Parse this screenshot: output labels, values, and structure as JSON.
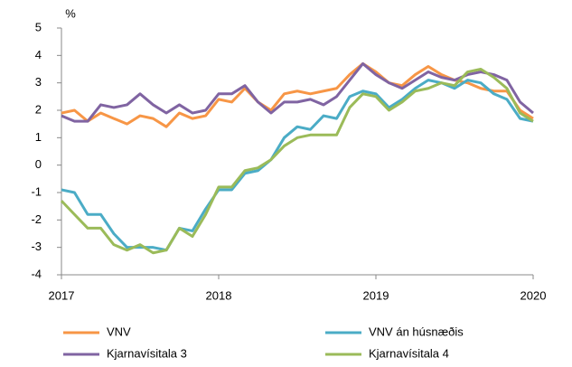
{
  "chart_data": {
    "type": "line",
    "y_label": "%",
    "x": [
      2017,
      2017.083,
      2017.167,
      2017.25,
      2017.333,
      2017.417,
      2017.5,
      2017.583,
      2017.667,
      2017.75,
      2017.833,
      2017.917,
      2018,
      2018.083,
      2018.167,
      2018.25,
      2018.333,
      2018.417,
      2018.5,
      2018.583,
      2018.667,
      2018.75,
      2018.833,
      2018.917,
      2019,
      2019.083,
      2019.167,
      2019.25,
      2019.333,
      2019.417,
      2019.5,
      2019.583,
      2019.667,
      2019.75,
      2019.833,
      2019.917,
      2020
    ],
    "series": [
      {
        "name": "VNV",
        "color": "#f79646",
        "values": [
          1.9,
          2.0,
          1.6,
          1.9,
          1.7,
          1.5,
          1.8,
          1.7,
          1.4,
          1.9,
          1.7,
          1.8,
          2.4,
          2.3,
          2.8,
          2.3,
          2.0,
          2.6,
          2.7,
          2.6,
          2.7,
          2.8,
          3.3,
          3.7,
          3.4,
          3.0,
          2.9,
          3.3,
          3.6,
          3.3,
          3.1,
          3.0,
          2.8,
          2.7,
          2.7,
          2.0,
          1.7
        ]
      },
      {
        "name": "VNV án húsnæðis",
        "color": "#4bacc6",
        "values": [
          -0.9,
          -1.0,
          -1.8,
          -1.8,
          -2.5,
          -3.0,
          -3.0,
          -3.0,
          -3.1,
          -2.3,
          -2.4,
          -1.6,
          -0.9,
          -0.9,
          -0.3,
          -0.2,
          0.2,
          1.0,
          1.4,
          1.3,
          1.8,
          1.7,
          2.5,
          2.7,
          2.6,
          2.1,
          2.4,
          2.8,
          3.1,
          3.0,
          2.8,
          3.1,
          3.0,
          2.6,
          2.4,
          1.7,
          1.6
        ]
      },
      {
        "name": "Kjarnavísitala 3",
        "color": "#8064a2",
        "values": [
          1.8,
          1.6,
          1.6,
          2.2,
          2.1,
          2.2,
          2.6,
          2.2,
          1.9,
          2.2,
          1.9,
          2.0,
          2.6,
          2.6,
          2.9,
          2.3,
          1.9,
          2.3,
          2.3,
          2.4,
          2.2,
          2.5,
          3.1,
          3.7,
          3.3,
          3.0,
          2.8,
          3.1,
          3.4,
          3.2,
          3.1,
          3.3,
          3.4,
          3.3,
          3.1,
          2.3,
          1.9
        ]
      },
      {
        "name": "Kjarnavísitala 4",
        "color": "#9bbb59",
        "values": [
          -1.3,
          -1.8,
          -2.3,
          -2.3,
          -2.9,
          -3.1,
          -2.9,
          -3.2,
          -3.1,
          -2.3,
          -2.6,
          -1.8,
          -0.8,
          -0.8,
          -0.2,
          -0.1,
          0.2,
          0.7,
          1.0,
          1.1,
          1.1,
          1.1,
          2.1,
          2.6,
          2.5,
          2.0,
          2.3,
          2.7,
          2.8,
          3.0,
          2.9,
          3.4,
          3.5,
          3.2,
          2.8,
          1.9,
          1.6
        ]
      }
    ],
    "xlim": [
      2017,
      2020
    ],
    "xticks": [
      2017,
      2018,
      2019,
      2020
    ],
    "ylim": [
      -4,
      5
    ],
    "yticks": [
      -4,
      -3,
      -2,
      -1,
      0,
      1,
      2,
      3,
      4,
      5
    ],
    "grid": false
  }
}
